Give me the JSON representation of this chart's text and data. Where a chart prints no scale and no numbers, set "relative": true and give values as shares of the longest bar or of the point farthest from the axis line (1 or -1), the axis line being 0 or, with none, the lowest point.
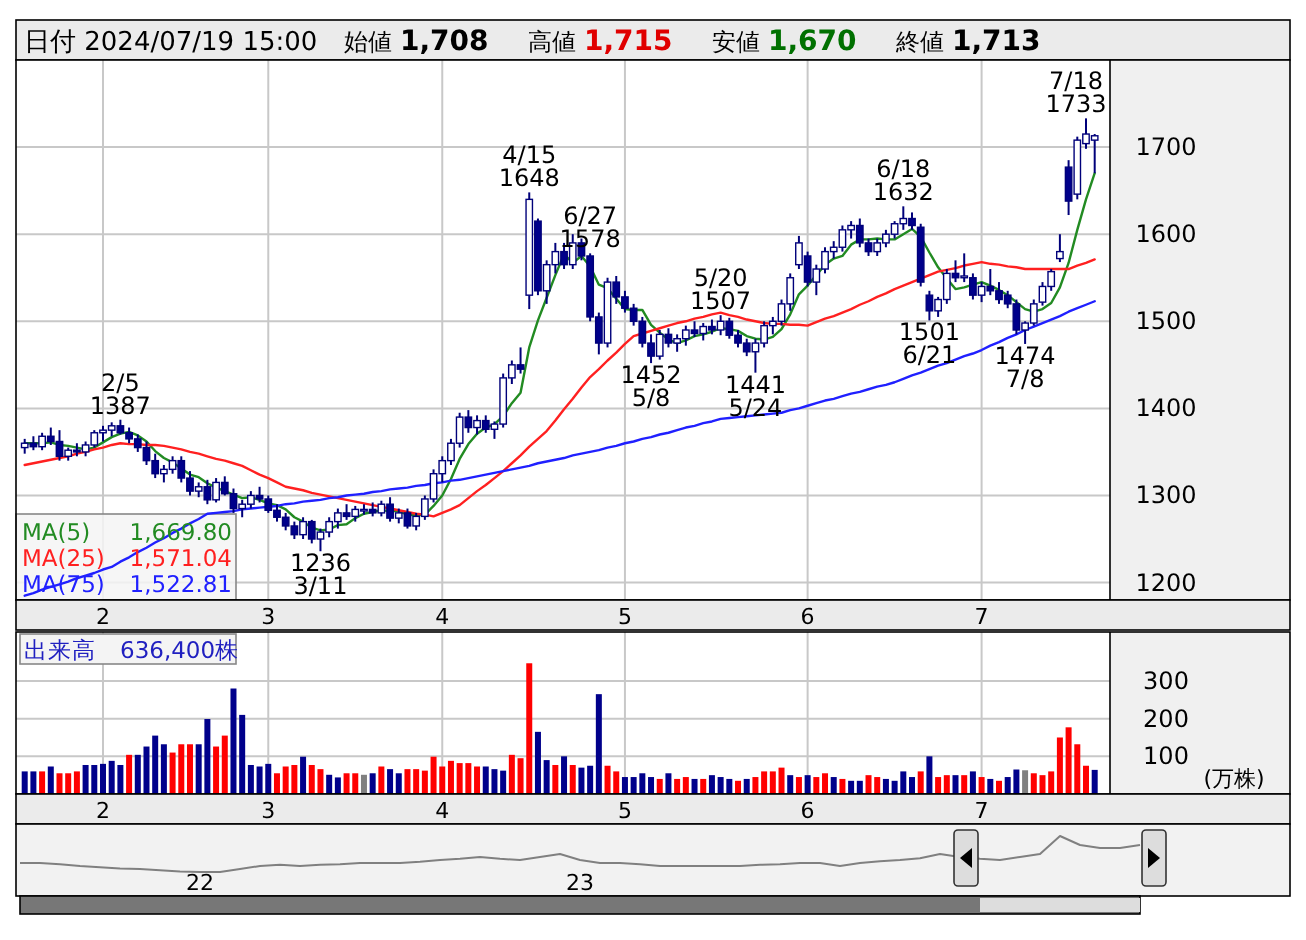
{
  "chart_data": [
    {
      "type": "candlestick",
      "title": "日付 2024/07/19 15:00",
      "annotations": [
        "始値",
        "1,708",
        "高値",
        "1,715",
        "安値",
        "1,670",
        "終値",
        "1,713",
        "1,669.80",
        "1,571.04",
        "1,522.81",
        {
          "text": "2/5\n1387",
          "y": 1387
        },
        {
          "text": "1236\n3/11",
          "y": 1236
        },
        {
          "text": "4/15\n1648",
          "y": 1648
        },
        {
          "text": "1452\n5/8",
          "y": 1452
        },
        {
          "text": "5/20\n1507",
          "y": 1507
        },
        {
          "text": "1441\n5/24",
          "y": 1441
        },
        {
          "text": "6/18\n1632",
          "y": 1632
        },
        {
          "text": "1501\n6/21",
          "y": 1501
        },
        {
          "text": "6/27\n1578",
          "y": 1578
        },
        {
          "text": "1474\n7/8",
          "y": 1474
        },
        {
          "text": "7/18\n1733",
          "y": 1733
        }
      ],
      "categories": [
        null,
        null,
        null,
        null,
        null,
        null,
        null,
        null,
        null,
        "2",
        null,
        null,
        null,
        null,
        null,
        null,
        null,
        null,
        null,
        null,
        null,
        null,
        null,
        null,
        null,
        null,
        null,
        null,
        "3",
        null,
        null,
        null,
        null,
        null,
        null,
        null,
        null,
        null,
        null,
        null,
        null,
        null,
        null,
        null,
        null,
        null,
        null,
        null,
        "4",
        null,
        null,
        null,
        null,
        null,
        null,
        null,
        null,
        null,
        null,
        null,
        null,
        null,
        null,
        null,
        null,
        null,
        null,
        null,
        null,
        "5",
        null,
        null,
        null,
        null,
        null,
        null,
        null,
        null,
        null,
        null,
        null,
        null,
        null,
        null,
        null,
        null,
        null,
        null,
        null,
        null,
        "6",
        null,
        null,
        null,
        null,
        null,
        null,
        null,
        null,
        null,
        null,
        null,
        null,
        null,
        null,
        null,
        null,
        null,
        null,
        null,
        "7",
        null,
        null,
        null,
        null,
        null,
        null,
        null,
        null,
        null,
        null,
        null,
        null,
        null
      ],
      "ohlc": [
        [
          1355,
          1365,
          1348,
          1360
        ],
        [
          1360,
          1368,
          1352,
          1356
        ],
        [
          1356,
          1372,
          1352,
          1368
        ],
        [
          1368,
          1378,
          1358,
          1362
        ],
        [
          1362,
          1375,
          1340,
          1345
        ],
        [
          1345,
          1355,
          1340,
          1352
        ],
        [
          1352,
          1360,
          1345,
          1350
        ],
        [
          1350,
          1362,
          1345,
          1358
        ],
        [
          1358,
          1375,
          1355,
          1372
        ],
        [
          1372,
          1380,
          1362,
          1375
        ],
        [
          1375,
          1384,
          1368,
          1380
        ],
        [
          1380,
          1387,
          1370,
          1372
        ],
        [
          1372,
          1378,
          1360,
          1365
        ],
        [
          1365,
          1370,
          1350,
          1355
        ],
        [
          1355,
          1362,
          1335,
          1340
        ],
        [
          1340,
          1348,
          1320,
          1325
        ],
        [
          1325,
          1335,
          1315,
          1330
        ],
        [
          1330,
          1345,
          1325,
          1340
        ],
        [
          1340,
          1345,
          1315,
          1320
        ],
        [
          1320,
          1328,
          1300,
          1305
        ],
        [
          1305,
          1315,
          1298,
          1310
        ],
        [
          1310,
          1318,
          1290,
          1295
        ],
        [
          1295,
          1320,
          1292,
          1315
        ],
        [
          1315,
          1322,
          1300,
          1302
        ],
        [
          1302,
          1308,
          1280,
          1285
        ],
        [
          1285,
          1295,
          1275,
          1290
        ],
        [
          1290,
          1305,
          1285,
          1300
        ],
        [
          1300,
          1310,
          1292,
          1296
        ],
        [
          1296,
          1300,
          1280,
          1283
        ],
        [
          1283,
          1290,
          1270,
          1275
        ],
        [
          1275,
          1280,
          1260,
          1265
        ],
        [
          1265,
          1270,
          1250,
          1255
        ],
        [
          1255,
          1275,
          1250,
          1270
        ],
        [
          1270,
          1272,
          1245,
          1250
        ],
        [
          1250,
          1262,
          1236,
          1258
        ],
        [
          1258,
          1275,
          1252,
          1270
        ],
        [
          1270,
          1285,
          1262,
          1280
        ],
        [
          1280,
          1290,
          1272,
          1276
        ],
        [
          1276,
          1288,
          1270,
          1284
        ],
        [
          1284,
          1290,
          1278,
          1284
        ],
        [
          1284,
          1292,
          1276,
          1280
        ],
        [
          1280,
          1294,
          1276,
          1290
        ],
        [
          1290,
          1298,
          1270,
          1274
        ],
        [
          1274,
          1285,
          1268,
          1280
        ],
        [
          1280,
          1285,
          1262,
          1265
        ],
        [
          1265,
          1280,
          1260,
          1276
        ],
        [
          1276,
          1300,
          1272,
          1296
        ],
        [
          1296,
          1330,
          1292,
          1325
        ],
        [
          1325,
          1345,
          1315,
          1340
        ],
        [
          1340,
          1365,
          1335,
          1360
        ],
        [
          1360,
          1395,
          1355,
          1390
        ],
        [
          1390,
          1398,
          1372,
          1378
        ],
        [
          1378,
          1392,
          1370,
          1386
        ],
        [
          1386,
          1392,
          1372,
          1376
        ],
        [
          1376,
          1385,
          1365,
          1382
        ],
        [
          1382,
          1440,
          1378,
          1435
        ],
        [
          1435,
          1455,
          1428,
          1450
        ],
        [
          1450,
          1470,
          1440,
          1445
        ],
        [
          1530,
          1648,
          1514,
          1640
        ],
        [
          1615,
          1618,
          1530,
          1535
        ],
        [
          1535,
          1570,
          1520,
          1565
        ],
        [
          1565,
          1590,
          1555,
          1580
        ],
        [
          1580,
          1590,
          1560,
          1565
        ],
        [
          1565,
          1600,
          1560,
          1590
        ],
        [
          1590,
          1595,
          1570,
          1575
        ],
        [
          1575,
          1578,
          1500,
          1505
        ],
        [
          1505,
          1510,
          1462,
          1475
        ],
        [
          1475,
          1550,
          1470,
          1545
        ],
        [
          1545,
          1552,
          1520,
          1528
        ],
        [
          1528,
          1535,
          1510,
          1515
        ],
        [
          1515,
          1520,
          1495,
          1500
        ],
        [
          1500,
          1505,
          1470,
          1475
        ],
        [
          1475,
          1485,
          1452,
          1460
        ],
        [
          1460,
          1490,
          1456,
          1485
        ],
        [
          1485,
          1492,
          1470,
          1475
        ],
        [
          1475,
          1485,
          1465,
          1480
        ],
        [
          1480,
          1495,
          1472,
          1490
        ],
        [
          1490,
          1500,
          1482,
          1486
        ],
        [
          1486,
          1498,
          1478,
          1494
        ],
        [
          1494,
          1502,
          1485,
          1490
        ],
        [
          1490,
          1507,
          1484,
          1500
        ],
        [
          1500,
          1504,
          1480,
          1484
        ],
        [
          1484,
          1490,
          1470,
          1475
        ],
        [
          1475,
          1480,
          1460,
          1465
        ],
        [
          1465,
          1480,
          1441,
          1475
        ],
        [
          1475,
          1500,
          1470,
          1495
        ],
        [
          1495,
          1505,
          1485,
          1500
        ],
        [
          1500,
          1525,
          1495,
          1520
        ],
        [
          1520,
          1555,
          1512,
          1550
        ],
        [
          1565,
          1598,
          1560,
          1590
        ],
        [
          1575,
          1580,
          1540,
          1545
        ],
        [
          1545,
          1565,
          1530,
          1560
        ],
        [
          1560,
          1585,
          1555,
          1580
        ],
        [
          1580,
          1592,
          1572,
          1585
        ],
        [
          1585,
          1610,
          1580,
          1605
        ],
        [
          1605,
          1615,
          1595,
          1610
        ],
        [
          1610,
          1618,
          1585,
          1590
        ],
        [
          1590,
          1595,
          1575,
          1580
        ],
        [
          1580,
          1595,
          1575,
          1590
        ],
        [
          1590,
          1605,
          1585,
          1600
        ],
        [
          1600,
          1615,
          1595,
          1612
        ],
        [
          1612,
          1632,
          1605,
          1618
        ],
        [
          1618,
          1625,
          1605,
          1610
        ],
        [
          1608,
          1612,
          1540,
          1545
        ],
        [
          1530,
          1535,
          1501,
          1512
        ],
        [
          1512,
          1528,
          1505,
          1525
        ],
        [
          1525,
          1560,
          1520,
          1555
        ],
        [
          1555,
          1570,
          1545,
          1550
        ],
        [
          1550,
          1578,
          1545,
          1552
        ],
        [
          1550,
          1555,
          1525,
          1530
        ],
        [
          1530,
          1545,
          1522,
          1540
        ],
        [
          1540,
          1560,
          1530,
          1535
        ],
        [
          1535,
          1545,
          1520,
          1525
        ],
        [
          1530,
          1535,
          1515,
          1520
        ],
        [
          1520,
          1525,
          1485,
          1490
        ],
        [
          1490,
          1500,
          1474,
          1498
        ],
        [
          1498,
          1525,
          1495,
          1520
        ],
        [
          1522,
          1545,
          1518,
          1540
        ],
        [
          1540,
          1560,
          1535,
          1557
        ],
        [
          1572,
          1600,
          1568,
          1580
        ],
        [
          1677,
          1685,
          1622,
          1638
        ],
        [
          1646,
          1712,
          1640,
          1708
        ],
        [
          1704,
          1733,
          1698,
          1715
        ],
        [
          1708,
          1715,
          1670,
          1713
        ]
      ],
      "series": [
        {
          "type": "line",
          "name": "MA(5)",
          "color": "#228b22",
          "values": [
            1360,
            1360,
            1360,
            1361,
            1358,
            1357,
            1355,
            1353,
            1355,
            1361,
            1367,
            1371,
            1373,
            1369,
            1362,
            1351,
            1343,
            1338,
            1331,
            1324,
            1321,
            1314,
            1309,
            1305,
            1301,
            1297,
            1298,
            1295,
            1291,
            1289,
            1284,
            1275,
            1270,
            1263,
            1260,
            1261,
            1266,
            1267,
            1274,
            1279,
            1281,
            1283,
            1282,
            1282,
            1278,
            1277,
            1278,
            1288,
            1300,
            1319,
            1342,
            1359,
            1371,
            1378,
            1382,
            1391,
            1406,
            1418,
            1470,
            1501,
            1527,
            1553,
            1577,
            1567,
            1575,
            1563,
            1542,
            1538,
            1526,
            1514,
            1513,
            1513,
            1496,
            1487,
            1479,
            1475,
            1478,
            1483,
            1485,
            1488,
            1492,
            1491,
            1489,
            1483,
            1480,
            1479,
            1482,
            1491,
            1508,
            1531,
            1541,
            1553,
            1565,
            1572,
            1575,
            1588,
            1594,
            1594,
            1595,
            1594,
            1594,
            1600,
            1606,
            1597,
            1579,
            1562,
            1549,
            1537,
            1539,
            1542,
            1545,
            1541,
            1536,
            1530,
            1522,
            1514,
            1511,
            1514,
            1521,
            1539,
            1567,
            1605,
            1640,
            1670
          ]
        },
        {
          "type": "line",
          "name": "MA(25)",
          "color": "#ff2020",
          "values": [
            1335,
            1337,
            1339,
            1341,
            1343,
            1345,
            1348,
            1350,
            1353,
            1355,
            1358,
            1360,
            1359,
            1359,
            1358,
            1358,
            1357,
            1355,
            1353,
            1350,
            1348,
            1345,
            1342,
            1340,
            1337,
            1334,
            1329,
            1324,
            1320,
            1315,
            1310,
            1308,
            1306,
            1303,
            1301,
            1299,
            1297,
            1295,
            1293,
            1291,
            1289,
            1287,
            1285,
            1283,
            1281,
            1279,
            1278,
            1276,
            1280,
            1284,
            1289,
            1297,
            1305,
            1312,
            1320,
            1328,
            1337,
            1346,
            1356,
            1365,
            1374,
            1386,
            1399,
            1411,
            1424,
            1436,
            1445,
            1455,
            1464,
            1474,
            1483,
            1486,
            1489,
            1492,
            1495,
            1498,
            1500,
            1503,
            1505,
            1508,
            1510,
            1507,
            1505,
            1502,
            1500,
            1498,
            1497,
            1497,
            1496,
            1496,
            1495,
            1499,
            1503,
            1506,
            1510,
            1514,
            1519,
            1523,
            1528,
            1532,
            1537,
            1541,
            1545,
            1549,
            1553,
            1557,
            1559,
            1561,
            1564,
            1566,
            1568,
            1566,
            1565,
            1563,
            1562,
            1560,
            1560,
            1560,
            1560,
            1560,
            1560,
            1564,
            1567,
            1571
          ]
        },
        {
          "type": "line",
          "name": "MA(75)",
          "color": "#2020ff",
          "values": [
            1185,
            1188,
            1192,
            1195,
            1198,
            1201,
            1205,
            1208,
            1211,
            1215,
            1218,
            1224,
            1229,
            1235,
            1240,
            1246,
            1251,
            1257,
            1262,
            1268,
            1273,
            1279,
            1280,
            1281,
            1282,
            1284,
            1285,
            1286,
            1287,
            1288,
            1290,
            1291,
            1293,
            1294,
            1295,
            1297,
            1298,
            1300,
            1301,
            1302,
            1304,
            1305,
            1307,
            1308,
            1309,
            1311,
            1312,
            1314,
            1315,
            1317,
            1318,
            1320,
            1322,
            1324,
            1326,
            1328,
            1330,
            1332,
            1334,
            1337,
            1339,
            1341,
            1343,
            1346,
            1348,
            1350,
            1352,
            1355,
            1357,
            1360,
            1362,
            1365,
            1367,
            1370,
            1372,
            1375,
            1378,
            1380,
            1383,
            1385,
            1388,
            1389,
            1390,
            1391,
            1392,
            1393,
            1394,
            1395,
            1398,
            1400,
            1403,
            1406,
            1409,
            1411,
            1414,
            1417,
            1419,
            1422,
            1425,
            1427,
            1430,
            1434,
            1438,
            1441,
            1445,
            1449,
            1452,
            1456,
            1460,
            1463,
            1467,
            1472,
            1476,
            1481,
            1485,
            1490,
            1494,
            1498,
            1502,
            1506,
            1511,
            1515,
            1519,
            1523
          ]
        }
      ],
      "ylim": [
        1180,
        1800
      ],
      "yticks": [
        1200,
        1300,
        1400,
        1500,
        1600,
        1700
      ],
      "grid": true,
      "legend": "bottom left"
    },
    {
      "type": "bar",
      "title": "出来高　636,400株",
      "ylabel": "(万株)",
      "categories": [
        null,
        null,
        null,
        null,
        null,
        null,
        null,
        null,
        null,
        "2",
        null,
        null,
        null,
        null,
        null,
        null,
        null,
        null,
        null,
        null,
        null,
        null,
        null,
        null,
        null,
        null,
        null,
        null,
        "3",
        null,
        null,
        null,
        null,
        null,
        null,
        null,
        null,
        null,
        null,
        null,
        null,
        null,
        null,
        null,
        null,
        null,
        null,
        null,
        "4",
        null,
        null,
        null,
        null,
        null,
        null,
        null,
        null,
        null,
        null,
        null,
        null,
        null,
        null,
        null,
        null,
        null,
        null,
        null,
        null,
        "5",
        null,
        null,
        null,
        null,
        null,
        null,
        null,
        null,
        null,
        null,
        null,
        null,
        null,
        null,
        null,
        null,
        null,
        null,
        null,
        null,
        "6",
        null,
        null,
        null,
        null,
        null,
        null,
        null,
        null,
        null,
        null,
        null,
        null,
        null,
        null,
        null,
        null,
        null,
        null,
        null,
        "7",
        null,
        null,
        null,
        null,
        null,
        null,
        null,
        null,
        null,
        null,
        null,
        null,
        null
      ],
      "values": [
        60,
        60,
        60,
        73,
        55,
        55,
        60,
        77,
        77,
        80,
        88,
        77,
        104,
        104,
        126,
        155,
        132,
        110,
        132,
        132,
        132,
        199,
        126,
        155,
        280,
        210,
        77,
        73,
        80,
        55,
        73,
        77,
        99,
        77,
        66,
        51,
        44,
        55,
        55,
        51,
        55,
        73,
        66,
        55,
        66,
        66,
        62,
        99,
        73,
        88,
        82,
        82,
        73,
        73,
        66,
        62,
        104,
        95,
        347,
        165,
        90,
        77,
        100,
        77,
        70,
        75,
        265,
        75,
        60,
        45,
        45,
        55,
        45,
        40,
        55,
        40,
        45,
        40,
        40,
        50,
        45,
        40,
        35,
        40,
        45,
        60,
        60,
        70,
        50,
        45,
        50,
        45,
        55,
        45,
        40,
        35,
        35,
        50,
        45,
        40,
        35,
        60,
        45,
        60,
        100,
        45,
        50,
        50,
        50,
        60,
        45,
        40,
        35,
        45,
        65,
        63,
        55,
        50,
        60,
        150,
        177,
        132,
        75,
        64
      ],
      "colors": [
        "#00008b",
        "#00008b",
        "#ff0000",
        "#00008b",
        "#ff0000",
        "#ff0000",
        "#ff0000",
        "#00008b",
        "#00008b",
        "#00008b",
        "#00008b",
        "#00008b",
        "#ff0000",
        "#00008b",
        "#00008b",
        "#00008b",
        "#00008b",
        "#ff0000",
        "#ff0000",
        "#ff0000",
        "#00008b",
        "#00008b",
        "#ff0000",
        "#ff0000",
        "#00008b",
        "#00008b",
        "#00008b",
        "#00008b",
        "#00008b",
        "#ff0000",
        "#ff0000",
        "#ff0000",
        "#00008b",
        "#ff0000",
        "#ff0000",
        "#00008b",
        "#00008b",
        "#ff0000",
        "#ff0000",
        "#808080",
        "#00008b",
        "#ff0000",
        "#00008b",
        "#00008b",
        "#ff0000",
        "#ff0000",
        "#ff0000",
        "#ff0000",
        "#ff0000",
        "#ff0000",
        "#ff0000",
        "#ff0000",
        "#ff0000",
        "#00008b",
        "#00008b",
        "#00008b",
        "#ff0000",
        "#ff0000",
        "#ff0000",
        "#00008b",
        "#00008b",
        "#ff0000",
        "#00008b",
        "#ff0000",
        "#00008b",
        "#00008b",
        "#00008b",
        "#ff0000",
        "#ff0000",
        "#00008b",
        "#00008b",
        "#00008b",
        "#00008b",
        "#ff0000",
        "#00008b",
        "#ff0000",
        "#ff0000",
        "#00008b",
        "#ff0000",
        "#00008b",
        "#00008b",
        "#00008b",
        "#ff0000",
        "#00008b",
        "#ff0000",
        "#ff0000",
        "#ff0000",
        "#ff0000",
        "#00008b",
        "#ff0000",
        "#00008b",
        "#ff0000",
        "#ff0000",
        "#00008b",
        "#ff0000",
        "#00008b",
        "#00008b",
        "#ff0000",
        "#ff0000",
        "#00008b",
        "#00008b",
        "#00008b",
        "#00008b",
        "#ff0000",
        "#00008b",
        "#ff0000",
        "#ff0000",
        "#00008b",
        "#ff0000",
        "#00008b",
        "#ff0000",
        "#00008b",
        "#ff0000",
        "#00008b",
        "#00008b",
        "#808080",
        "#ff0000",
        "#ff0000",
        "#ff0000",
        "#ff0000",
        "#ff0000",
        "#ff0000",
        "#ff0000",
        "#00008b"
      ],
      "ylim": [
        0,
        430
      ],
      "yticks": [
        100,
        200,
        300
      ],
      "grid": true
    },
    {
      "type": "line",
      "relative": true,
      "color": "#808080",
      "categories": [
        null,
        null,
        null,
        null,
        null,
        null,
        null,
        null,
        null,
        "22",
        null,
        null,
        null,
        null,
        null,
        null,
        null,
        null,
        null,
        null,
        null,
        null,
        null,
        null,
        null,
        null,
        null,
        null,
        "23",
        null,
        null,
        null,
        null,
        null,
        null,
        null,
        null,
        null,
        null,
        null,
        null,
        null,
        null,
        null,
        null,
        null,
        null,
        null,
        null,
        null,
        null,
        null,
        null,
        null,
        null,
        null,
        null
      ],
      "values": [
        0.55,
        0.55,
        0.53,
        0.5,
        0.48,
        0.46,
        0.45,
        0.43,
        0.41,
        0.4,
        0.4,
        0.45,
        0.5,
        0.52,
        0.5,
        0.52,
        0.53,
        0.55,
        0.55,
        0.55,
        0.57,
        0.6,
        0.62,
        0.65,
        0.62,
        0.6,
        0.65,
        0.7,
        0.6,
        0.55,
        0.55,
        0.53,
        0.5,
        0.5,
        0.5,
        0.5,
        0.5,
        0.52,
        0.53,
        0.55,
        0.55,
        0.5,
        0.55,
        0.58,
        0.6,
        0.63,
        0.7,
        0.65,
        0.62,
        0.6,
        0.65,
        0.7,
        1,
        0.85,
        0.8,
        0.8,
        0.85
      ]
    }
  ]
}
